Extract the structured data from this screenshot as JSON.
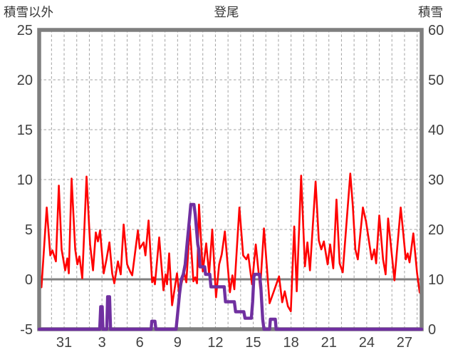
{
  "header": {
    "left_axis_title": "積雪以外",
    "chart_title": "登尾",
    "right_axis_title": "積雪"
  },
  "chart_data": {
    "type": "line",
    "title": "登尾",
    "grid": true,
    "legend": "none",
    "left_axis": {
      "label": "積雪以外",
      "min": -5,
      "max": 25,
      "ticks": [
        25,
        20,
        15,
        10,
        5,
        0,
        -5
      ],
      "zero_line_value": 0
    },
    "right_axis": {
      "label": "積雪",
      "min": 0,
      "max": 60,
      "ticks": [
        60,
        50,
        40,
        30,
        20,
        10,
        0
      ]
    },
    "x_axis": {
      "unit": "day",
      "d_min": -1.98,
      "d_max": 28.36,
      "gridline_first": -1,
      "gridline_last": 28,
      "tick_days": [
        0,
        3,
        6,
        9,
        12,
        15,
        18,
        21,
        24,
        27
      ],
      "tick_labels": [
        "31",
        "3",
        "6",
        "9",
        "12",
        "15",
        "18",
        "21",
        "24",
        "27"
      ]
    },
    "colors": {
      "red_series": "#ff0000",
      "purple_series": "#7030a0",
      "frame": "#7f7f7f",
      "gridline": "#a3a3a3",
      "zero_line": "#808080",
      "text": "#404040",
      "background": "#ffffff"
    },
    "series": [
      {
        "name": "red-line",
        "axis": "left",
        "color": "#ff0000",
        "width": 2.6,
        "points": [
          [
            -1.98,
            0.5
          ],
          [
            -1.93,
            0.7
          ],
          [
            -1.8,
            -0.8
          ],
          [
            -1.38,
            7.2
          ],
          [
            -1.1,
            2.4
          ],
          [
            -0.93,
            2.9
          ],
          [
            -0.65,
            1.8
          ],
          [
            -0.42,
            9.4
          ],
          [
            -0.2,
            3.0
          ],
          [
            0.08,
            0.9
          ],
          [
            0.25,
            2.1
          ],
          [
            0.37,
            0.6
          ],
          [
            0.59,
            10.1
          ],
          [
            0.88,
            3.0
          ],
          [
            1.05,
            1.5
          ],
          [
            1.21,
            2.3
          ],
          [
            1.44,
            0.1
          ],
          [
            1.78,
            10.3
          ],
          [
            2.06,
            3.5
          ],
          [
            2.29,
            0.9
          ],
          [
            2.51,
            4.7
          ],
          [
            2.68,
            3.8
          ],
          [
            2.85,
            4.9
          ],
          [
            3.14,
            0.6
          ],
          [
            3.36,
            2.0
          ],
          [
            3.59,
            3.7
          ],
          [
            3.81,
            0.6
          ],
          [
            3.98,
            -0.4
          ],
          [
            4.27,
            1.8
          ],
          [
            4.49,
            0.5
          ],
          [
            4.72,
            5.5
          ],
          [
            5.0,
            1.5
          ],
          [
            5.23,
            0.8
          ],
          [
            5.4,
            0.4
          ],
          [
            5.85,
            4.9
          ],
          [
            6.0,
            3.1
          ],
          [
            6.3,
            3.7
          ],
          [
            6.45,
            2.4
          ],
          [
            6.7,
            5.9
          ],
          [
            6.98,
            -0.3
          ],
          [
            7.1,
            0.2
          ],
          [
            7.2,
            -0.5
          ],
          [
            7.54,
            4.2
          ],
          [
            7.88,
            -1.1
          ],
          [
            8.05,
            0.5
          ],
          [
            8.16,
            -0.5
          ],
          [
            8.33,
            2.6
          ],
          [
            8.56,
            -2.6
          ],
          [
            8.95,
            0.6
          ],
          [
            9.12,
            -1.5
          ],
          [
            9.3,
            -0.5
          ],
          [
            9.52,
            0.7
          ],
          [
            9.69,
            -0.3
          ],
          [
            9.97,
            5.4
          ],
          [
            10.25,
            -0.2
          ],
          [
            10.4,
            0.2
          ],
          [
            10.54,
            -0.4
          ],
          [
            10.7,
            7.5
          ],
          [
            11.0,
            0.8
          ],
          [
            11.27,
            3.6
          ],
          [
            11.5,
            0.5
          ],
          [
            11.75,
            5.0
          ],
          [
            12.05,
            -1.8
          ],
          [
            12.3,
            1.5
          ],
          [
            12.5,
            2.5
          ],
          [
            12.75,
            4.8
          ],
          [
            13.15,
            -1.3
          ],
          [
            13.35,
            0.4
          ],
          [
            13.5,
            -1.0
          ],
          [
            13.9,
            7.2
          ],
          [
            14.2,
            2.4
          ],
          [
            14.45,
            2.0
          ],
          [
            14.6,
            2.5
          ],
          [
            14.9,
            -0.5
          ],
          [
            15.2,
            3.5
          ],
          [
            15.55,
            -0.9
          ],
          [
            15.85,
            5.1
          ],
          [
            16.3,
            -2.4
          ],
          [
            16.55,
            -1.5
          ],
          [
            16.8,
            -0.6
          ],
          [
            17.05,
            0.3
          ],
          [
            17.3,
            -2.3
          ],
          [
            17.5,
            -1.2
          ],
          [
            17.75,
            -2.7
          ],
          [
            17.98,
            -3.2
          ],
          [
            18.25,
            5.3
          ],
          [
            18.45,
            -1.2
          ],
          [
            18.8,
            10.4
          ],
          [
            19.1,
            1.3
          ],
          [
            19.3,
            3.7
          ],
          [
            19.5,
            0.9
          ],
          [
            19.95,
            9.8
          ],
          [
            20.2,
            3.9
          ],
          [
            20.4,
            3.0
          ],
          [
            20.6,
            3.8
          ],
          [
            20.9,
            1.5
          ],
          [
            21.1,
            3.5
          ],
          [
            21.35,
            1.1
          ],
          [
            21.6,
            8.0
          ],
          [
            21.85,
            1.6
          ],
          [
            22.1,
            0.7
          ],
          [
            22.7,
            10.6
          ],
          [
            22.9,
            7.3
          ],
          [
            23.1,
            3.0
          ],
          [
            23.3,
            2.0
          ],
          [
            23.7,
            7.2
          ],
          [
            23.95,
            5.8
          ],
          [
            24.4,
            2.0
          ],
          [
            24.6,
            3.0
          ],
          [
            24.75,
            1.6
          ],
          [
            25.0,
            6.4
          ],
          [
            25.3,
            2.0
          ],
          [
            25.5,
            0.5
          ],
          [
            25.7,
            6.1
          ],
          [
            26.2,
            -0.1
          ],
          [
            26.7,
            7.2
          ],
          [
            26.9,
            4.6
          ],
          [
            27.1,
            2.0
          ],
          [
            27.25,
            2.6
          ],
          [
            27.4,
            1.7
          ],
          [
            27.7,
            4.6
          ],
          [
            28.0,
            0.6
          ],
          [
            28.2,
            -1.3
          ],
          [
            28.36,
            -1.6
          ]
        ]
      },
      {
        "name": "purple-line",
        "axis": "right",
        "color": "#7030a0",
        "width": 4.4,
        "points": [
          [
            -1.98,
            0
          ],
          [
            2.82,
            0
          ],
          [
            2.9,
            4.5
          ],
          [
            3.02,
            4.5
          ],
          [
            3.08,
            0
          ],
          [
            3.38,
            0
          ],
          [
            3.45,
            6.5
          ],
          [
            3.6,
            6.5
          ],
          [
            3.68,
            0
          ],
          [
            6.9,
            0
          ],
          [
            6.95,
            1.6
          ],
          [
            7.2,
            1.6
          ],
          [
            7.28,
            0
          ],
          [
            8.88,
            0
          ],
          [
            9.0,
            3
          ],
          [
            9.15,
            7
          ],
          [
            9.3,
            10
          ],
          [
            9.45,
            11
          ],
          [
            9.6,
            13
          ],
          [
            9.75,
            17
          ],
          [
            9.9,
            21
          ],
          [
            10.05,
            25
          ],
          [
            10.3,
            25
          ],
          [
            10.4,
            23
          ],
          [
            10.5,
            20
          ],
          [
            10.6,
            17
          ],
          [
            10.68,
            16
          ],
          [
            10.78,
            12.5
          ],
          [
            11.15,
            12.5
          ],
          [
            11.22,
            11
          ],
          [
            11.55,
            11
          ],
          [
            11.65,
            8.5
          ],
          [
            12.7,
            8.5
          ],
          [
            12.8,
            5.5
          ],
          [
            13.5,
            5.5
          ],
          [
            13.6,
            3.5
          ],
          [
            14.25,
            3.5
          ],
          [
            14.35,
            2.2
          ],
          [
            14.85,
            2.2
          ],
          [
            14.95,
            5.5
          ],
          [
            15.05,
            10.5
          ],
          [
            15.12,
            11
          ],
          [
            15.5,
            11
          ],
          [
            15.6,
            8.5
          ],
          [
            15.75,
            2
          ],
          [
            15.85,
            0
          ],
          [
            16.3,
            0
          ],
          [
            16.36,
            2
          ],
          [
            16.75,
            2
          ],
          [
            16.82,
            0
          ],
          [
            28.36,
            0
          ]
        ]
      }
    ]
  }
}
